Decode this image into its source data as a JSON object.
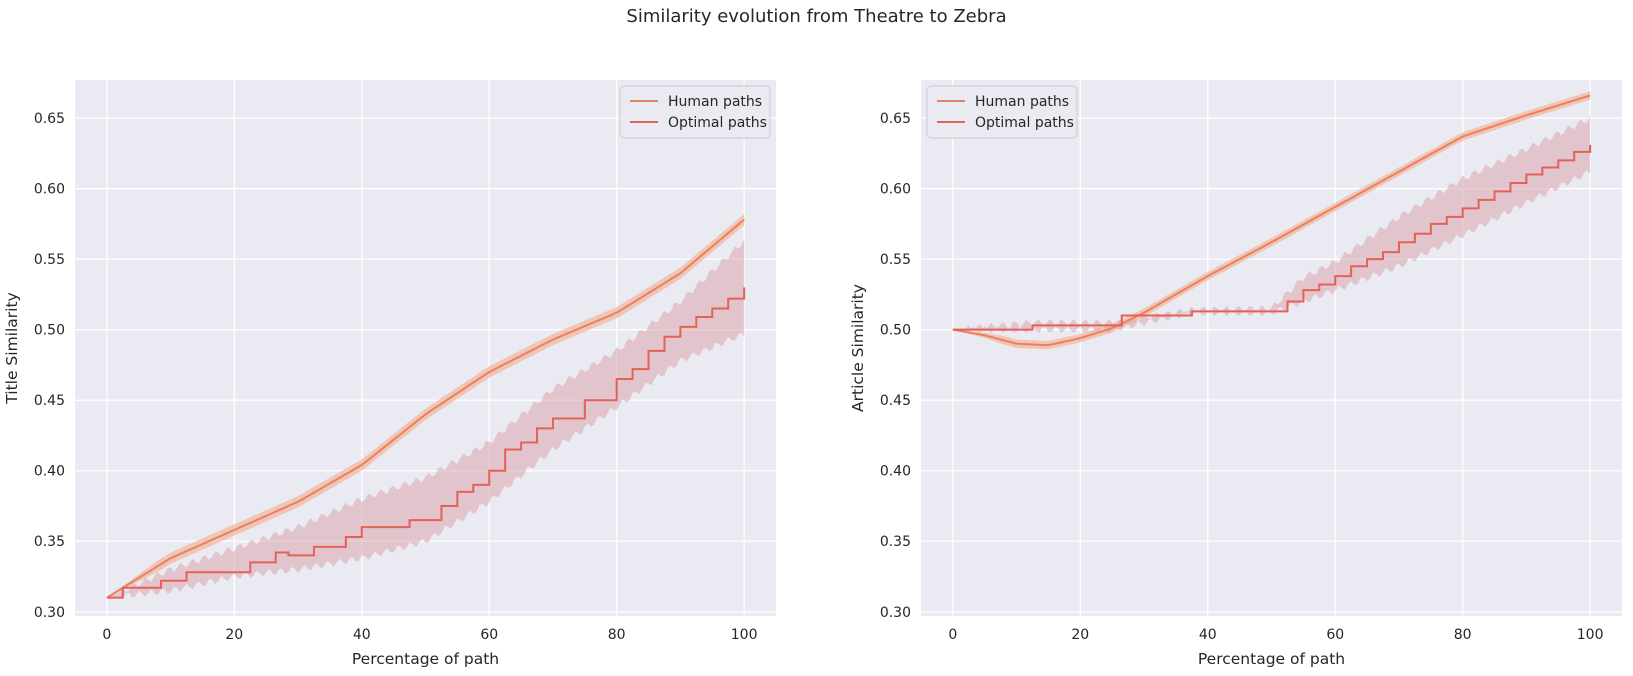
{
  "title": "Similarity evolution from Theatre to Zebra",
  "colors": {
    "human": "#e8815f",
    "optimal": "#e36157",
    "band_human": "#f1b8a0",
    "band_optimal": "#dba5ad",
    "panel_bg": "#eaeaf2",
    "grid": "#ffffff"
  },
  "chart_data": [
    {
      "type": "line",
      "title": "",
      "xlabel": "Percentage of path",
      "ylabel": "Title Similarity",
      "xlim": [
        -5,
        105
      ],
      "ylim": [
        0.297,
        0.677
      ],
      "xticks": [
        0,
        20,
        40,
        60,
        80,
        100
      ],
      "yticks": [
        0.3,
        0.35,
        0.4,
        0.45,
        0.5,
        0.55,
        0.6,
        0.65
      ],
      "xtick_labels": [
        "0",
        "20",
        "40",
        "60",
        "80",
        "100"
      ],
      "ytick_labels": [
        "0.30",
        "0.35",
        "0.40",
        "0.45",
        "0.50",
        "0.55",
        "0.60",
        "0.65"
      ],
      "grid": true,
      "legend": "top-right",
      "series": [
        {
          "name": "Human paths",
          "style": "smooth",
          "ci": 0.004,
          "x": [
            0,
            10,
            20,
            30,
            40,
            50,
            60,
            70,
            80,
            90,
            100
          ],
          "y": [
            0.31,
            0.338,
            0.358,
            0.378,
            0.404,
            0.44,
            0.47,
            0.493,
            0.512,
            0.54,
            0.578
          ]
        },
        {
          "name": "Optimal paths",
          "style": "step",
          "x": [
            0,
            2.5,
            7.5,
            8.5,
            12.5,
            17.5,
            22.5,
            26.5,
            28.5,
            32.5,
            37.5,
            40,
            42.5,
            47.5,
            52.5,
            55,
            57.5,
            60,
            62.5,
            65,
            67.5,
            70,
            75,
            80,
            82.5,
            85,
            87.5,
            90,
            92.5,
            95,
            97.5,
            100
          ],
          "y": [
            0.31,
            0.317,
            0.317,
            0.322,
            0.328,
            0.328,
            0.335,
            0.342,
            0.34,
            0.346,
            0.353,
            0.36,
            0.36,
            0.365,
            0.375,
            0.385,
            0.39,
            0.4,
            0.415,
            0.42,
            0.43,
            0.437,
            0.45,
            0.465,
            0.472,
            0.485,
            0.495,
            0.502,
            0.509,
            0.515,
            0.522,
            0.53
          ],
          "ci_x": [
            0,
            10,
            20,
            30,
            40,
            50,
            60,
            70,
            80,
            90,
            100
          ],
          "ci_lo": [
            0.31,
            0.315,
            0.325,
            0.33,
            0.338,
            0.35,
            0.378,
            0.415,
            0.445,
            0.478,
            0.497
          ],
          "ci_hi": [
            0.31,
            0.33,
            0.345,
            0.36,
            0.38,
            0.395,
            0.42,
            0.458,
            0.485,
            0.52,
            0.563
          ]
        }
      ]
    },
    {
      "type": "line",
      "title": "",
      "xlabel": "Percentage of path",
      "ylabel": "Article Similarity",
      "xlim": [
        -5,
        105
      ],
      "ylim": [
        0.297,
        0.677
      ],
      "xticks": [
        0,
        20,
        40,
        60,
        80,
        100
      ],
      "yticks": [
        0.3,
        0.35,
        0.4,
        0.45,
        0.5,
        0.55,
        0.6,
        0.65
      ],
      "xtick_labels": [
        "0",
        "20",
        "40",
        "60",
        "80",
        "100"
      ],
      "ytick_labels": [
        "0.30",
        "0.35",
        "0.40",
        "0.45",
        "0.50",
        "0.55",
        "0.60",
        "0.65"
      ],
      "grid": true,
      "legend": "top-left",
      "series": [
        {
          "name": "Human paths",
          "style": "smooth",
          "ci": 0.003,
          "x": [
            0,
            5,
            10,
            15,
            20,
            25,
            30,
            40,
            50,
            60,
            70,
            80,
            90,
            100
          ],
          "y": [
            0.5,
            0.496,
            0.49,
            0.489,
            0.494,
            0.501,
            0.512,
            0.538,
            0.562,
            0.587,
            0.612,
            0.637,
            0.652,
            0.666
          ]
        },
        {
          "name": "Optimal paths",
          "style": "step",
          "x": [
            0,
            12.5,
            25,
            26.5,
            37.5,
            51.5,
            52.5,
            55,
            57.5,
            60,
            62.5,
            65,
            67.5,
            70,
            72.5,
            75,
            77.5,
            80,
            82.5,
            85,
            87.5,
            90,
            92.5,
            95,
            97.5,
            100
          ],
          "y": [
            0.5,
            0.503,
            0.503,
            0.51,
            0.513,
            0.513,
            0.52,
            0.528,
            0.532,
            0.538,
            0.545,
            0.55,
            0.555,
            0.562,
            0.568,
            0.575,
            0.58,
            0.586,
            0.592,
            0.598,
            0.604,
            0.61,
            0.615,
            0.62,
            0.626,
            0.631
          ],
          "ci_x": [
            0,
            12.5,
            25,
            37.5,
            50,
            55,
            60,
            70,
            80,
            90,
            100
          ],
          "ci_lo": [
            0.5,
            0.5,
            0.5,
            0.512,
            0.512,
            0.52,
            0.528,
            0.545,
            0.567,
            0.59,
            0.612
          ],
          "ci_hi": [
            0.5,
            0.505,
            0.505,
            0.514,
            0.515,
            0.537,
            0.548,
            0.58,
            0.607,
            0.628,
            0.65
          ]
        }
      ]
    }
  ]
}
